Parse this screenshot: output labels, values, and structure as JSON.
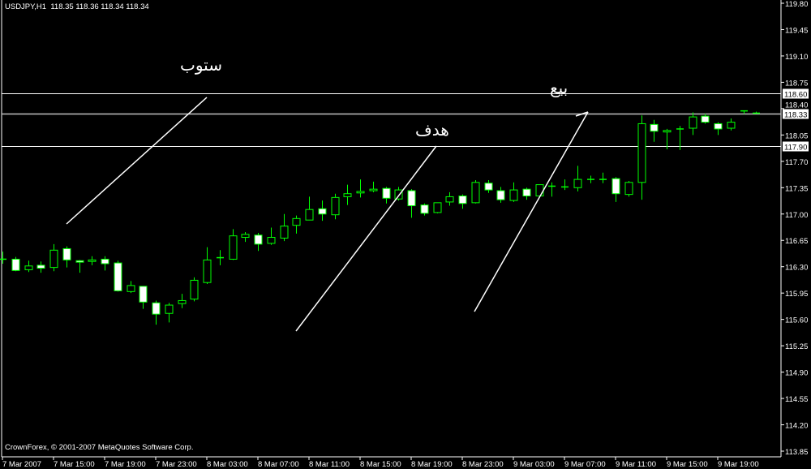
{
  "header": {
    "symbol_title": "USDJPY,H1",
    "ohlc_text": "118.35 118.36 118.34 118.34"
  },
  "footer": {
    "copyright": "CrownForex, © 2001-2007 MetaQuotes Software Corp."
  },
  "annotations": {
    "stop": "ستوب",
    "target": "هدف",
    "sell": "بيع"
  },
  "colors": {
    "background": "#000000",
    "candle": "#00ff00",
    "bear_body": "#ffffff",
    "bull_body": "#000000",
    "lines": "#ffffff",
    "bid_line": "#c0c0c0"
  },
  "chart_data": {
    "type": "candlestick",
    "symbol": "USDJPY",
    "timeframe": "H1",
    "ylim": [
      113.85,
      119.8
    ],
    "y_ticks": [
      "119.80",
      "119.45",
      "119.10",
      "118.75",
      "118.40",
      "118.05",
      "117.70",
      "117.35",
      "117.00",
      "116.65",
      "116.30",
      "115.95",
      "115.60",
      "115.25",
      "114.90",
      "114.55",
      "114.20",
      "113.85"
    ],
    "x_ticks": [
      "7 Mar 2007",
      "7 Mar 15:00",
      "7 Mar 19:00",
      "7 Mar 23:00",
      "8 Mar 03:00",
      "8 Mar 07:00",
      "8 Mar 11:00",
      "8 Mar 15:00",
      "8 Mar 19:00",
      "8 Mar 23:00",
      "9 Mar 03:00",
      "9 Mar 07:00",
      "9 Mar 11:00",
      "9 Mar 15:00",
      "9 Mar 19:00"
    ],
    "horizontal_lines": [
      {
        "price": "118.60",
        "kind": "level"
      },
      {
        "price": "118.33",
        "kind": "bid"
      },
      {
        "price": "117.90",
        "kind": "level"
      }
    ],
    "ohlc": [
      [
        116.4,
        116.5,
        116.34,
        116.4
      ],
      [
        116.4,
        116.43,
        116.24,
        116.25
      ],
      [
        116.26,
        116.38,
        116.23,
        116.31
      ],
      [
        116.32,
        116.37,
        116.22,
        116.28
      ],
      [
        116.29,
        116.6,
        116.24,
        116.52
      ],
      [
        116.54,
        116.57,
        116.29,
        116.39
      ],
      [
        116.38,
        116.39,
        116.22,
        116.36
      ],
      [
        116.37,
        116.44,
        116.32,
        116.39
      ],
      [
        116.4,
        116.44,
        116.25,
        116.34
      ],
      [
        116.35,
        116.38,
        115.97,
        115.98
      ],
      [
        115.97,
        116.11,
        115.95,
        116.05
      ],
      [
        116.04,
        116.04,
        115.74,
        115.83
      ],
      [
        115.82,
        115.85,
        115.53,
        115.67
      ],
      [
        115.68,
        115.82,
        115.56,
        115.79
      ],
      [
        115.81,
        115.94,
        115.75,
        115.85
      ],
      [
        115.87,
        116.16,
        115.84,
        116.12
      ],
      [
        116.09,
        116.56,
        116.07,
        116.39
      ],
      [
        116.42,
        116.52,
        116.32,
        116.42
      ],
      [
        116.4,
        116.8,
        116.39,
        116.71
      ],
      [
        116.69,
        116.76,
        116.63,
        116.73
      ],
      [
        116.72,
        116.75,
        116.51,
        116.6
      ],
      [
        116.61,
        116.82,
        116.59,
        116.69
      ],
      [
        116.68,
        117.0,
        116.64,
        116.84
      ],
      [
        116.85,
        116.98,
        116.74,
        116.94
      ],
      [
        116.92,
        117.23,
        116.92,
        117.06
      ],
      [
        117.07,
        117.18,
        116.91,
        117.0
      ],
      [
        116.99,
        117.27,
        116.93,
        117.22
      ],
      [
        117.23,
        117.39,
        117.12,
        117.27
      ],
      [
        117.28,
        117.46,
        117.22,
        117.3
      ],
      [
        117.31,
        117.43,
        117.29,
        117.33
      ],
      [
        117.34,
        117.36,
        117.14,
        117.21
      ],
      [
        117.2,
        117.36,
        117.18,
        117.32
      ],
      [
        117.31,
        117.33,
        116.95,
        117.11
      ],
      [
        117.12,
        117.14,
        116.98,
        117.01
      ],
      [
        117.02,
        117.15,
        117.01,
        117.15
      ],
      [
        117.16,
        117.29,
        117.11,
        117.23
      ],
      [
        117.24,
        117.26,
        117.07,
        117.14
      ],
      [
        117.15,
        117.45,
        117.14,
        117.42
      ],
      [
        117.41,
        117.45,
        117.28,
        117.32
      ],
      [
        117.31,
        117.36,
        117.15,
        117.19
      ],
      [
        117.18,
        117.42,
        117.16,
        117.32
      ],
      [
        117.33,
        117.35,
        117.19,
        117.24
      ],
      [
        117.24,
        117.39,
        117.22,
        117.39
      ],
      [
        117.37,
        117.42,
        117.23,
        117.37
      ],
      [
        117.36,
        117.46,
        117.32,
        117.36
      ],
      [
        117.35,
        117.64,
        117.3,
        117.46
      ],
      [
        117.46,
        117.51,
        117.41,
        117.46
      ],
      [
        117.46,
        117.55,
        117.41,
        117.46
      ],
      [
        117.47,
        117.49,
        117.16,
        117.27
      ],
      [
        117.26,
        117.44,
        117.23,
        117.42
      ],
      [
        117.42,
        118.31,
        117.19,
        118.2
      ],
      [
        118.19,
        118.25,
        117.96,
        118.1
      ],
      [
        118.09,
        118.13,
        117.86,
        118.11
      ],
      [
        118.13,
        118.17,
        117.85,
        118.13
      ],
      [
        118.14,
        118.35,
        118.05,
        118.29
      ],
      [
        118.3,
        118.33,
        118.2,
        118.22
      ],
      [
        118.2,
        118.22,
        118.05,
        118.13
      ],
      [
        118.14,
        118.27,
        118.11,
        118.22
      ],
      [
        118.36,
        118.37,
        118.33,
        118.37
      ],
      [
        118.34,
        118.36,
        118.34,
        118.34
      ]
    ]
  }
}
